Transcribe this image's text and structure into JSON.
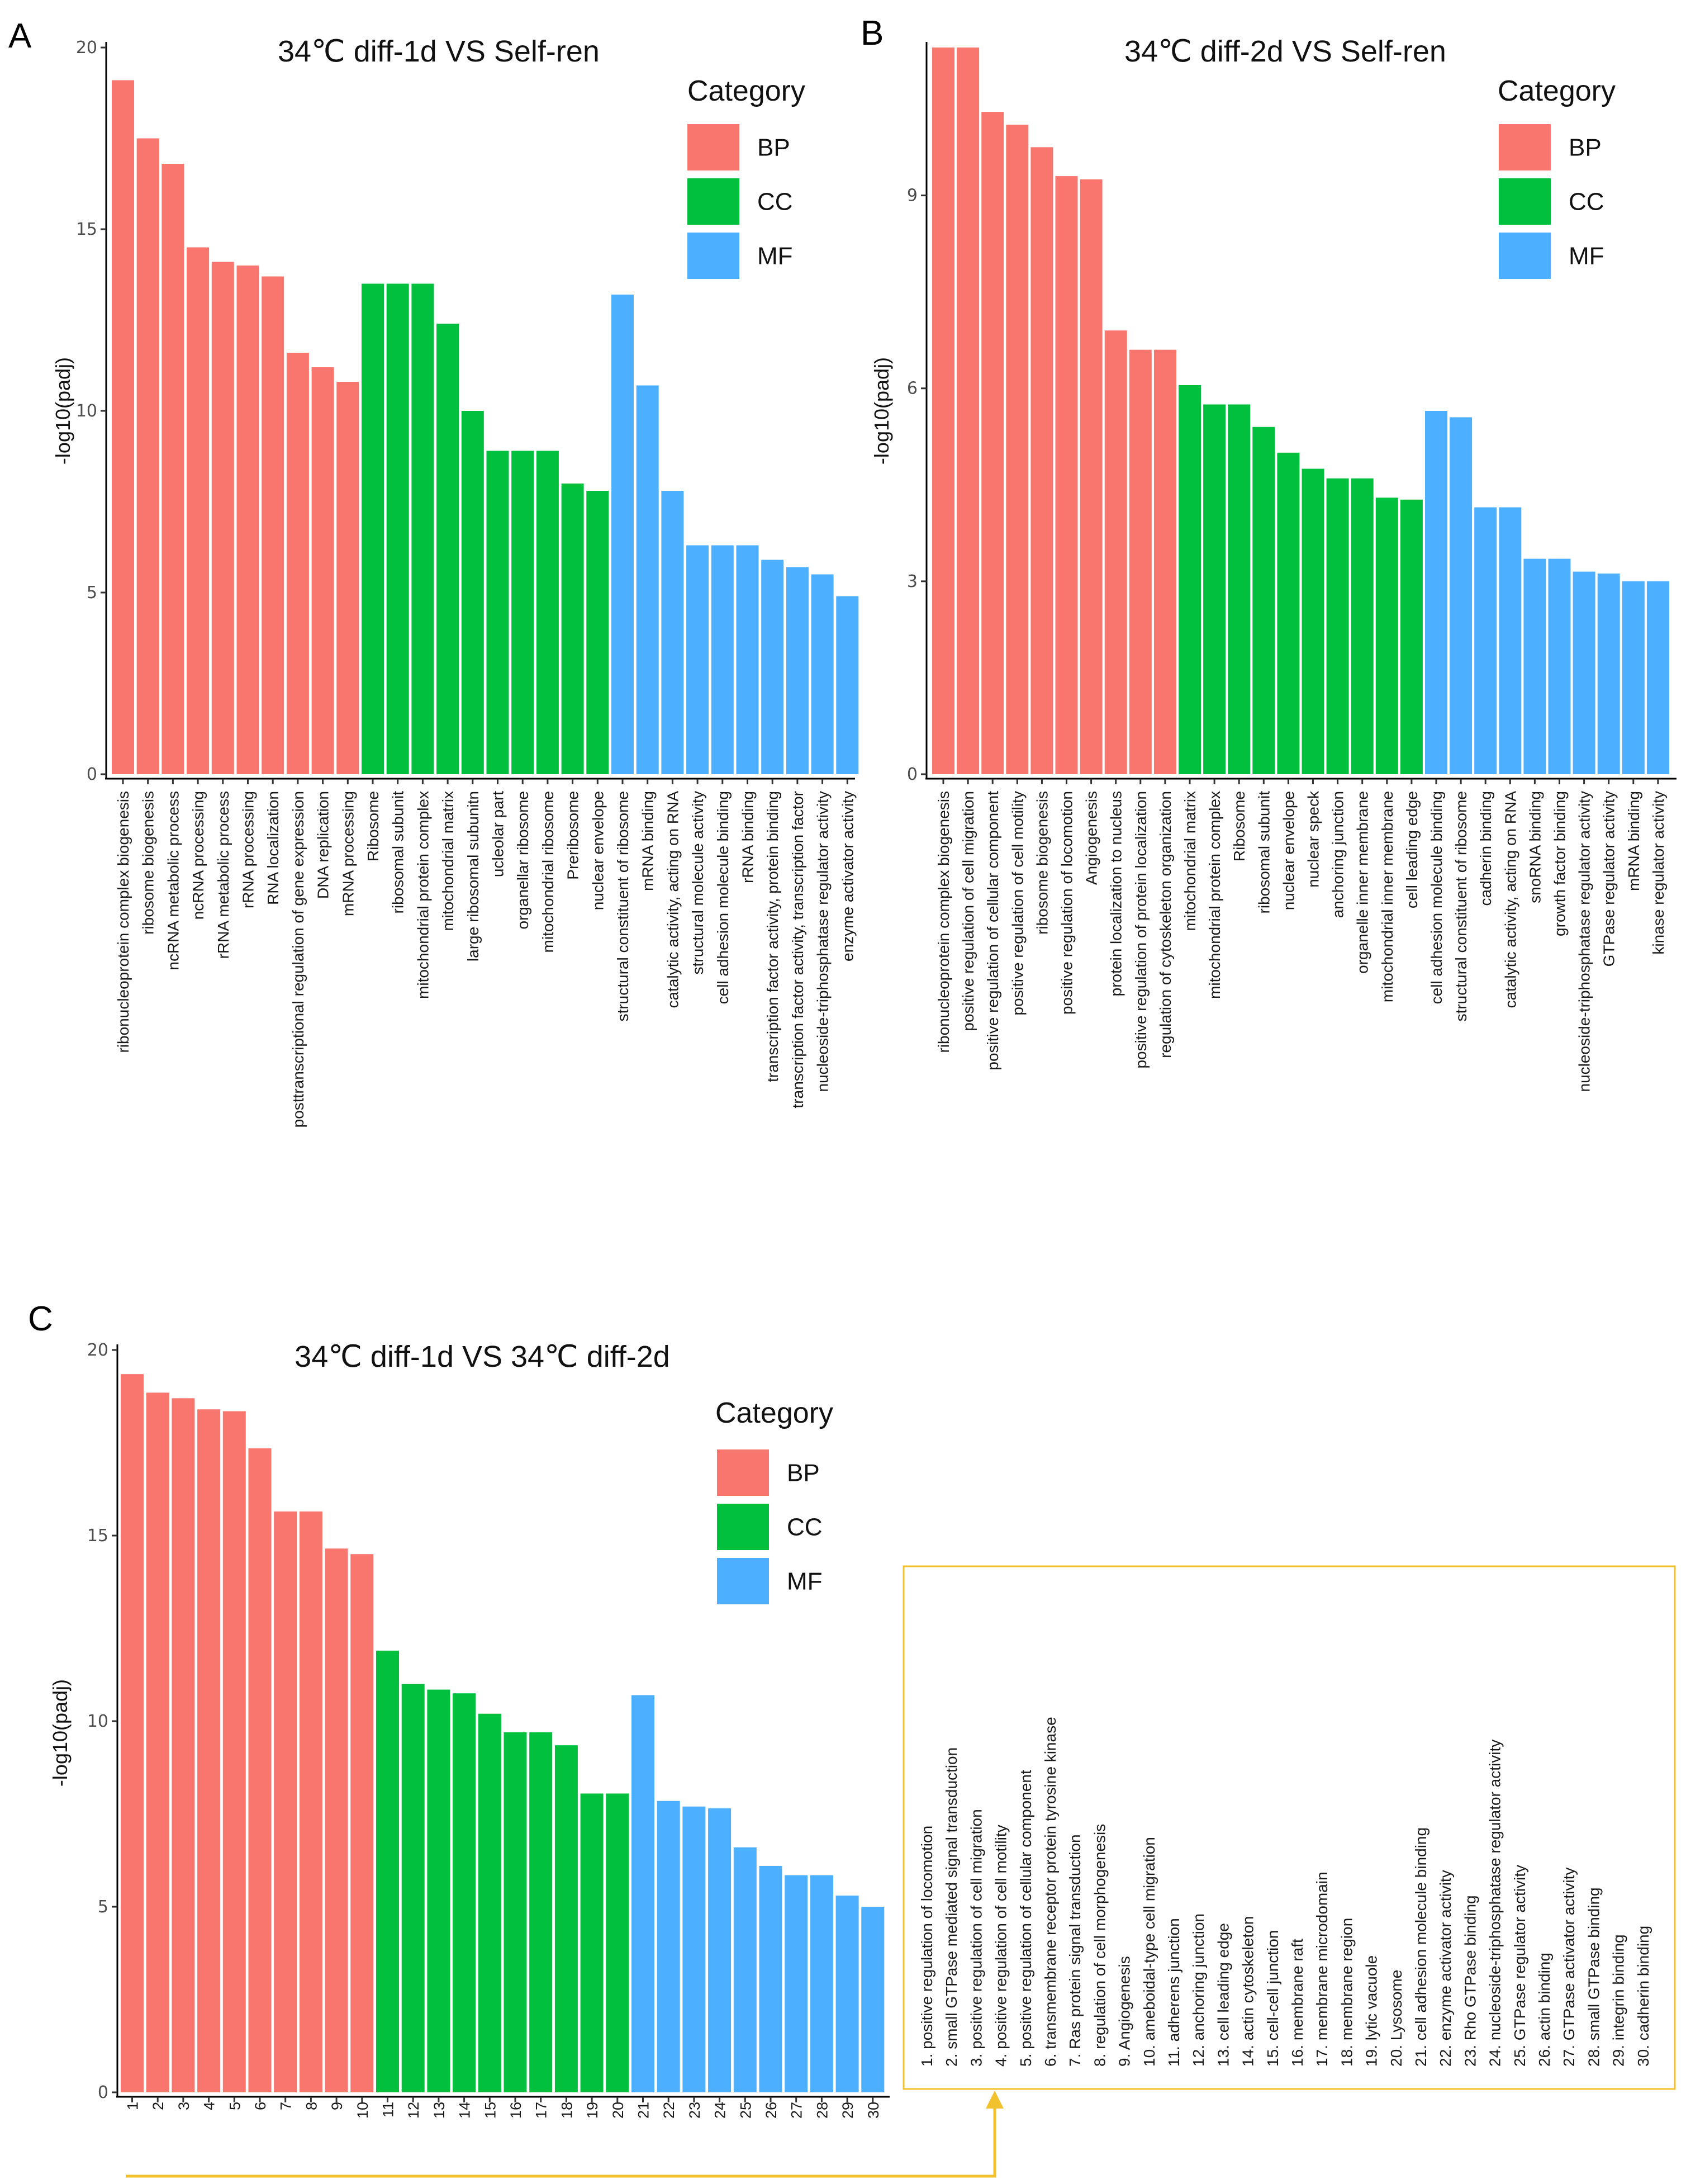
{
  "colors": {
    "BP": "#F8766D",
    "CC": "#00C03E",
    "MF": "#4DAFFF",
    "key_border": "#F2C12E",
    "axis": "#000000"
  },
  "legend": {
    "title": "Category",
    "labels": [
      "BP",
      "CC",
      "MF"
    ]
  },
  "chart_data": [
    {
      "panel": "A",
      "type": "bar",
      "title": "34℃ diff-1d VS Self-ren",
      "ylabel": "-log10(padj)",
      "ylim": [
        0,
        20
      ],
      "yticks": [
        0,
        5,
        10,
        15,
        20
      ],
      "categories": [
        "ribonucleoprotein complex biogenesis",
        "ribosome biogenesis",
        "ncRNA metabolic process",
        "ncRNA processing",
        "rRNA metabolic process",
        "rRNA processing",
        "RNA localization",
        "posttranscriptional regulation of gene expression",
        "DNA replication",
        "mRNA processing",
        "Ribosome",
        "ribosomal subunit",
        "mitochondrial protein complex",
        "mitochondrial matrix",
        "large ribosomal subunitn",
        "ucleolar part",
        "organellar ribosome",
        "mitochondrial ribosome",
        "Preribosome",
        "nuclear envelope",
        "structural constituent of ribosome",
        "mRNA binding",
        "catalytic activity, acting on RNA",
        "structural molecule activity",
        "cell adhesion molecule binding",
        "rRNA binding",
        "transcription factor activity, protein binding",
        "transcription factor activity, transcription factor",
        "nucleoside-triphosphatase regulator activity",
        "enzyme activator activity"
      ],
      "values": [
        19.1,
        17.5,
        16.8,
        14.5,
        14.1,
        14.0,
        13.7,
        11.6,
        11.2,
        10.8,
        13.5,
        13.5,
        13.5,
        12.4,
        10.0,
        8.9,
        8.9,
        8.9,
        8.0,
        7.8,
        13.2,
        10.7,
        7.8,
        6.3,
        6.3,
        6.3,
        5.9,
        5.7,
        5.5,
        4.9
      ],
      "groups": [
        "BP",
        "BP",
        "BP",
        "BP",
        "BP",
        "BP",
        "BP",
        "BP",
        "BP",
        "BP",
        "CC",
        "CC",
        "CC",
        "CC",
        "CC",
        "CC",
        "CC",
        "CC",
        "CC",
        "CC",
        "MF",
        "MF",
        "MF",
        "MF",
        "MF",
        "MF",
        "MF",
        "MF",
        "MF",
        "MF"
      ]
    },
    {
      "panel": "B",
      "type": "bar",
      "title": "34℃ diff-2d VS Self-ren",
      "ylabel": "-log10(padj)",
      "ylim": [
        0,
        11.3
      ],
      "yticks": [
        0,
        3,
        6,
        9
      ],
      "categories": [
        "ribonucleoprotein complex biogenesis",
        "positive regulation of cell migration",
        "positive regulation of cellular component",
        "positive regulation of cell motility",
        "ribosome biogenesis",
        "positive regulation of locomotion",
        "Angiogenesis",
        "protein localization to nucleus",
        "positive regulation of protein localization",
        "regulation of cytoskeleton organization",
        "mitochondrial matrix",
        "mitochondrial protein complex",
        "Ribosome",
        "ribosomal subunit",
        "nuclear envelope",
        "nuclear speck",
        "anchoring junction",
        "organelle inner membrane",
        "mitochondrial inner membrane",
        "cell leading edge",
        "cell adhesion molecule binding",
        "structural constituent of ribosome",
        "cadherin binding",
        "catalytic activity, acting on RNA",
        "snoRNA binding",
        "growth factor binding",
        "nucleoside-triphosphatase regulator activity",
        "GTPase regulator activity",
        "mRNA binding",
        "kinase regulator activity"
      ],
      "values": [
        11.3,
        11.3,
        10.3,
        10.1,
        9.75,
        9.3,
        9.25,
        6.9,
        6.6,
        6.6,
        6.05,
        5.75,
        5.75,
        5.4,
        5.0,
        4.75,
        4.6,
        4.6,
        4.3,
        4.27,
        5.65,
        5.55,
        4.15,
        4.15,
        3.35,
        3.35,
        3.15,
        3.12,
        3.0,
        3.0
      ],
      "groups": [
        "BP",
        "BP",
        "BP",
        "BP",
        "BP",
        "BP",
        "BP",
        "BP",
        "BP",
        "BP",
        "CC",
        "CC",
        "CC",
        "CC",
        "CC",
        "CC",
        "CC",
        "CC",
        "CC",
        "CC",
        "MF",
        "MF",
        "MF",
        "MF",
        "MF",
        "MF",
        "MF",
        "MF",
        "MF",
        "MF"
      ]
    },
    {
      "panel": "C",
      "type": "bar",
      "title": "34℃ diff-1d VS 34℃ diff-2d",
      "ylabel": "-log10(padj)",
      "ylim": [
        0,
        20
      ],
      "yticks": [
        0,
        5,
        10,
        15,
        20
      ],
      "categories": [
        "1",
        "2",
        "3",
        "4",
        "5",
        "6",
        "7",
        "8",
        "9",
        "10",
        "11",
        "12",
        "13",
        "14",
        "15",
        "16",
        "17",
        "18",
        "19",
        "20",
        "21",
        "22",
        "23",
        "24",
        "25",
        "26",
        "27",
        "28",
        "29",
        "30"
      ],
      "values": [
        19.35,
        18.85,
        18.7,
        18.4,
        18.35,
        17.35,
        15.65,
        15.65,
        14.65,
        14.5,
        11.9,
        11.0,
        10.85,
        10.75,
        10.2,
        9.7,
        9.7,
        9.35,
        8.05,
        8.05,
        10.7,
        7.85,
        7.7,
        7.65,
        6.6,
        6.1,
        5.85,
        5.85,
        5.3,
        5.0
      ],
      "groups": [
        "BP",
        "BP",
        "BP",
        "BP",
        "BP",
        "BP",
        "BP",
        "BP",
        "BP",
        "BP",
        "CC",
        "CC",
        "CC",
        "CC",
        "CC",
        "CC",
        "CC",
        "CC",
        "CC",
        "CC",
        "MF",
        "MF",
        "MF",
        "MF",
        "MF",
        "MF",
        "MF",
        "MF",
        "MF",
        "MF"
      ],
      "key": [
        "1. positive regulation of locomotion",
        "2. small GTPase mediated signal transduction",
        "3. positive regulation of cell migration",
        "4. positive regulation of cell motility",
        "5. positive regulation of cellular component",
        "6. transmembrane receptor protein tyrosine kinase",
        "7. Ras protein signal transduction",
        "8. regulation of cell morphogenesis",
        "9. Angiogenesis",
        "10. ameboidal-type cell migration",
        "11. adherens junction",
        "12. anchoring junction",
        "13. cell leading edge",
        "14. actin cytoskeleton",
        "15. cell-cell junction",
        "16. membrane raft",
        "17. membrane microdomain",
        "18. membrane region",
        "19. lytic vacuole",
        "20. Lysosome",
        "21. cell adhesion molecule binding",
        "22. enzyme activator activity",
        "23. Rho GTPase binding",
        "24. nucleoside-triphosphatase regulator activity",
        "25. GTPase regulator activity",
        "26. actin binding",
        "27. GTPase activator activity",
        "28. small GTPase binding",
        "29. integrin binding",
        "30. cadherin binding"
      ]
    }
  ]
}
